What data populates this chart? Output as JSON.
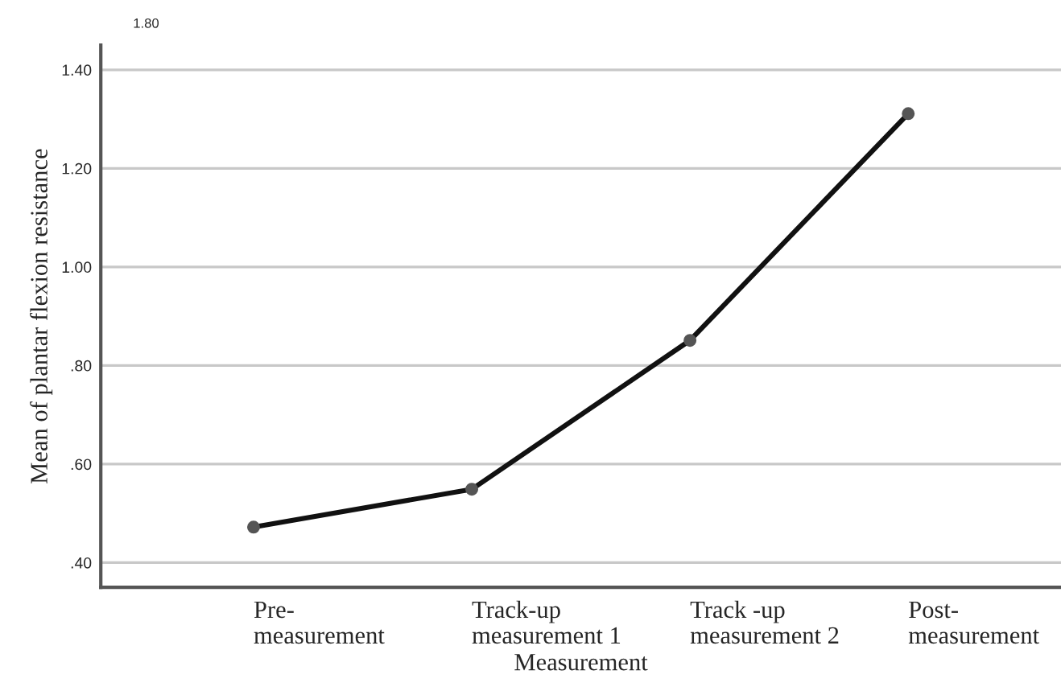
{
  "chart_data": {
    "type": "line",
    "xlabel": "Measurement",
    "ylabel": "Mean of plantar flexion resistance",
    "categories": [
      "Pre-\nmeasurement",
      "Track-up\nmeasurement 1",
      "Track -up\nmeasurement 2",
      "Post-\nmeasurement"
    ],
    "series": [
      {
        "color": "#111111",
        "values": [
          0.472,
          0.549,
          0.851,
          1.311
        ]
      }
    ],
    "ylim": [
      0.35,
      1.45
    ],
    "yticks": [
      {
        "value": 0.4,
        "label": ".40"
      },
      {
        "value": 0.6,
        "label": ".60"
      },
      {
        "value": 0.8,
        "label": ".80"
      },
      {
        "value": 1.0,
        "label": "1.00"
      },
      {
        "value": 1.2,
        "label": "1.20"
      },
      {
        "value": 1.4,
        "label": "1.40"
      }
    ],
    "annotations": [
      "1.80"
    ],
    "grid": "y",
    "marker": "circle",
    "line_style": "solid",
    "legend": false
  }
}
